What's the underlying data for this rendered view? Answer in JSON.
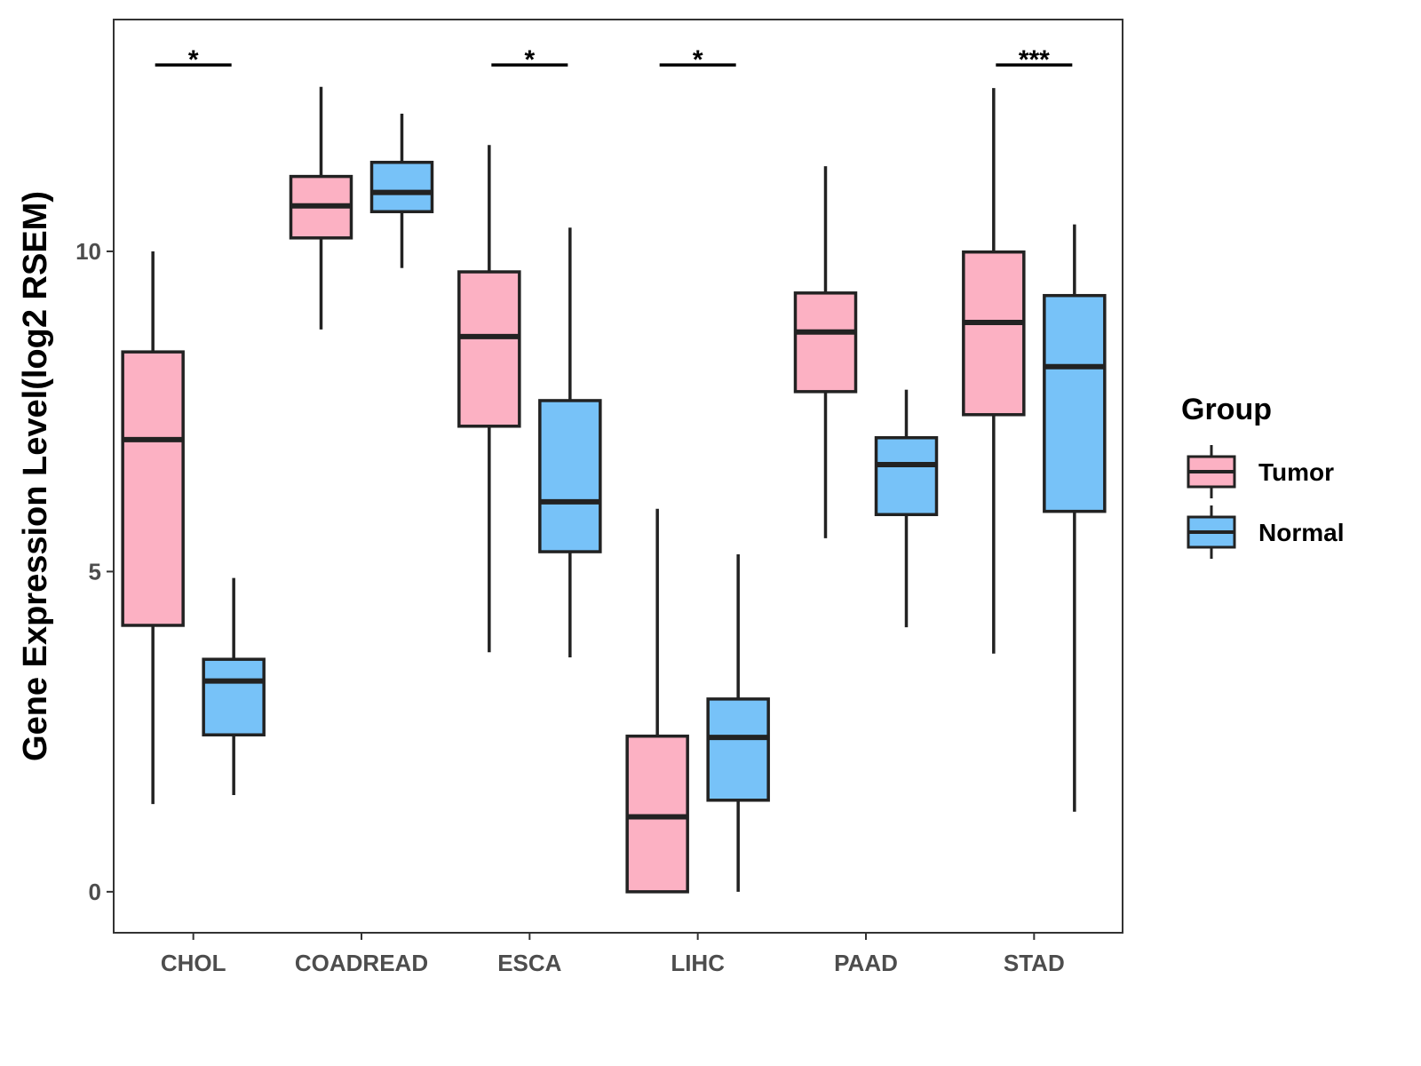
{
  "chart_data": {
    "type": "box",
    "title": "",
    "xlabel": "",
    "ylabel": "Gene Expression Level(log2 RSEM)",
    "ylim": [
      -0.64,
      13.62
    ],
    "yticks": [
      0,
      5,
      10
    ],
    "ytick_labels": [
      "0",
      "5",
      "10"
    ],
    "grid": false,
    "categories": [
      "CHOL",
      "COADREAD",
      "ESCA",
      "LIHC",
      "PAAD",
      "STAD"
    ],
    "legend": {
      "title": "Group",
      "position": "right",
      "entries": [
        "Tumor",
        "Normal"
      ]
    },
    "colors": {
      "Tumor": "#FCB1C3",
      "Normal": "#77C2F8"
    },
    "series": [
      {
        "name": "Tumor",
        "boxes": [
          {
            "min": 1.37,
            "q1": 4.16,
            "median": 7.06,
            "q3": 8.43,
            "max": 10.0
          },
          {
            "min": 8.78,
            "q1": 10.21,
            "median": 10.71,
            "q3": 11.17,
            "max": 12.57
          },
          {
            "min": 3.74,
            "q1": 7.27,
            "median": 8.67,
            "q3": 9.68,
            "max": 11.66
          },
          {
            "min": 0.0,
            "q1": 0.0,
            "median": 1.17,
            "q3": 2.43,
            "max": 5.98
          },
          {
            "min": 5.52,
            "q1": 7.81,
            "median": 8.74,
            "q3": 9.35,
            "max": 11.33
          },
          {
            "min": 3.72,
            "q1": 7.45,
            "median": 8.89,
            "q3": 9.99,
            "max": 12.55
          }
        ]
      },
      {
        "name": "Normal",
        "boxes": [
          {
            "min": 1.51,
            "q1": 2.45,
            "median": 3.29,
            "q3": 3.63,
            "max": 4.9
          },
          {
            "min": 9.74,
            "q1": 10.62,
            "median": 10.92,
            "q3": 11.39,
            "max": 12.15
          },
          {
            "min": 3.66,
            "q1": 5.31,
            "median": 6.09,
            "q3": 7.67,
            "max": 10.37
          },
          {
            "min": 0.0,
            "q1": 1.43,
            "median": 2.41,
            "q3": 3.01,
            "max": 5.27
          },
          {
            "min": 4.13,
            "q1": 5.89,
            "median": 6.67,
            "q3": 7.09,
            "max": 7.84
          },
          {
            "min": 1.25,
            "q1": 5.94,
            "median": 8.2,
            "q3": 9.31,
            "max": 10.42
          }
        ]
      }
    ],
    "significance": [
      {
        "category": "CHOL",
        "label": "*",
        "y": 12.91
      },
      {
        "category": "ESCA",
        "label": "*",
        "y": 12.91
      },
      {
        "category": "LIHC",
        "label": "*",
        "y": 12.91
      },
      {
        "category": "STAD",
        "label": "***",
        "y": 12.91
      }
    ]
  }
}
